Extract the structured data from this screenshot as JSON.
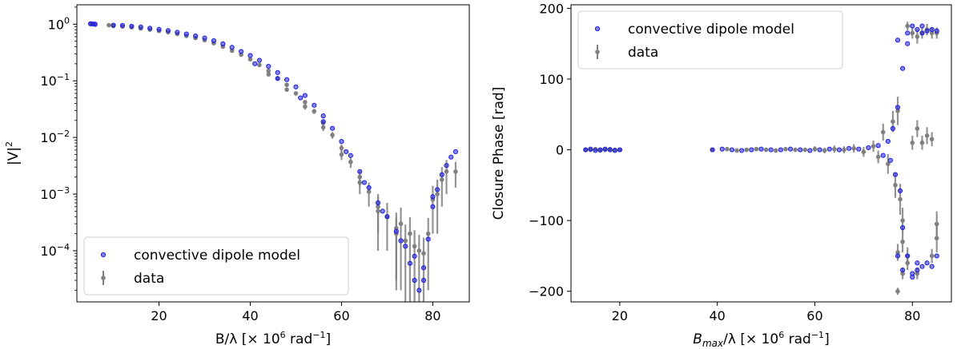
{
  "chart_data": [
    {
      "type": "scatter",
      "xlabel": {
        "main": "B/λ [× 10",
        "sup": "6",
        "rest": " rad",
        "sup2": "−1",
        "end": "]"
      },
      "ylabel": {
        "main": "|V|",
        "sup": "2"
      },
      "xlim": [
        2,
        88
      ],
      "ylim": [
        1.25e-05,
        2.2
      ],
      "yscale": "log",
      "x_ticks": [
        20,
        40,
        60,
        80
      ],
      "x_tick_labels": [
        "20",
        "40",
        "60",
        "80"
      ],
      "y_ticks": [
        1,
        0.1,
        0.01,
        0.001,
        0.0001
      ],
      "y_tick_labels": [
        {
          "base": "10",
          "exp": "0"
        },
        {
          "base": "10",
          "exp": "−1"
        },
        {
          "base": "10",
          "exp": "−2"
        },
        {
          "base": "10",
          "exp": "−3"
        },
        {
          "base": "10",
          "exp": "−4"
        }
      ],
      "legend": {
        "position": "lower-left",
        "entries": [
          "convective dipole model",
          "data"
        ]
      },
      "colors": {
        "model": "#1f1fe0",
        "data": "#808080"
      },
      "series": [
        {
          "name": "convective dipole model",
          "points": [
            [
              5,
              1.02
            ],
            [
              5.5,
              1.01
            ],
            [
              6,
              1.0
            ],
            [
              10,
              0.96
            ],
            [
              12,
              0.95
            ],
            [
              14,
              0.92
            ],
            [
              16,
              0.89
            ],
            [
              18,
              0.85
            ],
            [
              20,
              0.81
            ],
            [
              22,
              0.77
            ],
            [
              24,
              0.72
            ],
            [
              26,
              0.67
            ],
            [
              28,
              0.62
            ],
            [
              30,
              0.57
            ],
            [
              32,
              0.51
            ],
            [
              34,
              0.45
            ],
            [
              36,
              0.39
            ],
            [
              38,
              0.33
            ],
            [
              40,
              0.28
            ],
            [
              42,
              0.23
            ],
            [
              44,
              0.18
            ],
            [
              46,
              0.14
            ],
            [
              48,
              0.105
            ],
            [
              50,
              0.078
            ],
            [
              52,
              0.055
            ],
            [
              54,
              0.037
            ],
            [
              56,
              0.024
            ],
            [
              58,
              0.0145
            ],
            [
              60,
              0.0085
            ],
            [
              62,
              0.0048
            ],
            [
              64,
              0.0025
            ],
            [
              66,
              0.0013
            ],
            [
              68,
              0.0007
            ],
            [
              70,
              0.0004
            ],
            [
              72,
              0.00022
            ],
            [
              74,
              0.00012
            ],
            [
              75,
              6e-05
            ],
            [
              76,
              3e-05
            ],
            [
              77,
              2e-05
            ],
            [
              78,
              5e-05
            ],
            [
              79,
              0.00016
            ],
            [
              80,
              0.0006
            ],
            [
              81,
              0.0012
            ],
            [
              82,
              0.0022
            ],
            [
              83,
              0.0032
            ],
            [
              85,
              0.0056
            ],
            [
              41,
              0.2
            ],
            [
              46,
              0.11
            ],
            [
              51,
              0.05
            ],
            [
              56,
              0.019
            ],
            [
              61,
              0.0056
            ],
            [
              65,
              0.0016
            ],
            [
              69,
              0.0005
            ],
            [
              73,
              0.00015
            ],
            [
              76,
              8e-05
            ],
            [
              78,
              3e-05
            ],
            [
              80,
              0.0009
            ],
            [
              84,
              0.0045
            ]
          ]
        },
        {
          "name": "data",
          "points": [
            [
              5,
              1.0,
              0.05
            ],
            [
              6,
              0.98,
              0.05
            ],
            [
              9,
              0.96,
              0.05
            ],
            [
              10,
              0.93,
              0.05
            ],
            [
              12,
              0.91,
              0.04
            ],
            [
              14,
              0.88,
              0.04
            ],
            [
              16,
              0.84,
              0.04
            ],
            [
              18,
              0.8,
              0.03
            ],
            [
              20,
              0.76,
              0.03
            ],
            [
              22,
              0.72,
              0.03
            ],
            [
              24,
              0.67,
              0.03
            ],
            [
              26,
              0.62,
              0.03
            ],
            [
              28,
              0.57,
              0.03
            ],
            [
              30,
              0.52,
              0.02
            ],
            [
              32,
              0.46,
              0.02
            ],
            [
              34,
              0.4,
              0.02
            ],
            [
              36,
              0.34,
              0.02
            ],
            [
              38,
              0.29,
              0.015
            ],
            [
              40,
              0.24,
              0.015
            ],
            [
              42,
              0.19,
              0.012
            ],
            [
              44,
              0.15,
              0.01
            ],
            [
              46,
              0.11,
              0.008
            ],
            [
              48,
              0.085,
              0.007
            ],
            [
              50,
              0.06,
              0.005
            ],
            [
              52,
              0.042,
              0.004
            ],
            [
              54,
              0.029,
              0.003
            ],
            [
              56,
              0.018,
              0.002
            ],
            [
              58,
              0.011,
              0.0015
            ],
            [
              60,
              0.0065,
              0.001
            ],
            [
              62,
              0.0037,
              0.0008
            ],
            [
              64,
              0.002,
              0.0006
            ],
            [
              66,
              0.0011,
              0.0005
            ],
            [
              68,
              0.0006,
              0.0004
            ],
            [
              70,
              0.0004,
              0.0003
            ],
            [
              72,
              0.00025,
              0.00022
            ],
            [
              73,
              0.0003,
              0.00028
            ],
            [
              74,
              0.00015,
              0.00014
            ],
            [
              75,
              0.0002,
              0.00019
            ],
            [
              76,
              0.00012,
              0.00011
            ],
            [
              77,
              0.0001,
              9e-05
            ],
            [
              78,
              9e-05,
              8e-05
            ],
            [
              79,
              0.0002,
              0.00018
            ],
            [
              80,
              0.0008,
              0.0006
            ],
            [
              81,
              0.001,
              0.0008
            ],
            [
              82,
              0.0018,
              0.0012
            ],
            [
              83,
              0.0025,
              0.0015
            ],
            [
              85,
              0.0025,
              0.0012
            ],
            [
              44,
              0.13,
              0.01
            ],
            [
              48,
              0.07,
              0.006
            ],
            [
              52,
              0.035,
              0.004
            ],
            [
              56,
              0.015,
              0.002
            ],
            [
              60,
              0.005,
              0.001
            ],
            [
              64,
              0.0016,
              0.0006
            ],
            [
              68,
              0.0005,
              0.0004
            ],
            [
              72,
              0.0002,
              0.00018
            ]
          ]
        }
      ]
    },
    {
      "type": "scatter",
      "xlabel": {
        "main": "B",
        "sub": "max",
        "mid": "/λ [× 10",
        "sup": "6",
        "rest": " rad",
        "sup2": "−1",
        "end": "]"
      },
      "ylabel": {
        "main": "Closure Phase [rad]"
      },
      "xlim": [
        10,
        88
      ],
      "ylim": [
        -215,
        205
      ],
      "x_ticks": [
        20,
        40,
        60,
        80
      ],
      "x_tick_labels": [
        "20",
        "40",
        "60",
        "80"
      ],
      "y_ticks": [
        200,
        100,
        0,
        -100,
        -200
      ],
      "y_tick_labels": [
        "200",
        "100",
        "0",
        "−100",
        "−200"
      ],
      "legend": {
        "position": "top-left",
        "entries": [
          "convective dipole model",
          "data"
        ]
      },
      "colors": {
        "model": "#1f1fe0",
        "data": "#808080"
      },
      "series": [
        {
          "name": "convective dipole model",
          "points": [
            [
              13,
              0
            ],
            [
              14,
              1
            ],
            [
              15,
              -1
            ],
            [
              16,
              0
            ],
            [
              17,
              1
            ],
            [
              18,
              0
            ],
            [
              19,
              -1
            ],
            [
              20,
              0
            ],
            [
              39,
              0
            ],
            [
              41,
              1
            ],
            [
              43,
              0
            ],
            [
              45,
              -1
            ],
            [
              47,
              0
            ],
            [
              49,
              1
            ],
            [
              51,
              0
            ],
            [
              53,
              0
            ],
            [
              55,
              1
            ],
            [
              57,
              0
            ],
            [
              59,
              -1
            ],
            [
              61,
              0
            ],
            [
              63,
              1
            ],
            [
              65,
              0
            ],
            [
              67,
              2
            ],
            [
              69,
              1
            ],
            [
              71,
              3
            ],
            [
              73,
              6
            ],
            [
              74,
              -8
            ],
            [
              75,
              12
            ],
            [
              75.5,
              -15
            ],
            [
              76,
              30
            ],
            [
              76.5,
              -35
            ],
            [
              77,
              60
            ],
            [
              77.5,
              -58
            ],
            [
              78,
              115
            ],
            [
              78,
              -110
            ],
            [
              79,
              150
            ],
            [
              79,
              -150
            ],
            [
              77,
              155
            ],
            [
              77,
              -150
            ],
            [
              80,
              175
            ],
            [
              80,
              -175
            ],
            [
              81,
              170
            ],
            [
              81,
              -170
            ],
            [
              82,
              165
            ],
            [
              82,
              -165
            ],
            [
              83,
              168
            ],
            [
              83,
              -160
            ],
            [
              84,
              170
            ],
            [
              84,
              -165
            ],
            [
              85,
              168
            ],
            [
              85,
              -150
            ],
            [
              78,
              -170
            ],
            [
              80,
              -180
            ],
            [
              82,
              175
            ],
            [
              79,
              165
            ],
            [
              81,
              -160
            ]
          ]
        },
        {
          "name": "data",
          "points": [
            [
              13,
              0,
              3
            ],
            [
              14,
              0,
              3
            ],
            [
              15,
              1,
              3
            ],
            [
              16,
              -1,
              3
            ],
            [
              17,
              0,
              3
            ],
            [
              18,
              1,
              3
            ],
            [
              19,
              0,
              3
            ],
            [
              20,
              0,
              3
            ],
            [
              39,
              0,
              3
            ],
            [
              42,
              1,
              3
            ],
            [
              44,
              -1,
              3
            ],
            [
              46,
              0,
              3
            ],
            [
              48,
              1,
              3
            ],
            [
              50,
              0,
              3
            ],
            [
              52,
              -1,
              3
            ],
            [
              54,
              1,
              3
            ],
            [
              56,
              0,
              3
            ],
            [
              58,
              0,
              3
            ],
            [
              60,
              1,
              4
            ],
            [
              62,
              -1,
              4
            ],
            [
              64,
              1,
              5
            ],
            [
              66,
              0,
              5
            ],
            [
              68,
              2,
              6
            ],
            [
              70,
              -3,
              7
            ],
            [
              72,
              5,
              8
            ],
            [
              73,
              -10,
              9
            ],
            [
              74,
              25,
              12
            ],
            [
              75,
              -20,
              14
            ],
            [
              76,
              40,
              15
            ],
            [
              76.5,
              -50,
              18
            ],
            [
              77,
              55,
              20
            ],
            [
              77.5,
              -70,
              22
            ],
            [
              78,
              -130,
              15
            ],
            [
              78,
              -100,
              18
            ],
            [
              79,
              -150,
              12
            ],
            [
              80,
              10,
              10
            ],
            [
              81,
              30,
              12
            ],
            [
              82,
              10,
              10
            ],
            [
              83,
              20,
              12
            ],
            [
              84,
              15,
              10
            ],
            [
              85,
              -125,
              20
            ],
            [
              85,
              -105,
              18
            ],
            [
              84,
              -150,
              10
            ],
            [
              77,
              -145,
              12
            ],
            [
              78,
              -175,
              8
            ],
            [
              79,
              -160,
              10
            ],
            [
              80,
              165,
              8
            ],
            [
              81,
              160,
              10
            ],
            [
              82,
              165,
              8
            ],
            [
              83,
              170,
              8
            ],
            [
              84,
              165,
              8
            ],
            [
              85,
              165,
              8
            ],
            [
              77,
              -200,
              5
            ],
            [
              79,
              175,
              6
            ],
            [
              81,
              -175,
              8
            ]
          ]
        }
      ]
    }
  ]
}
